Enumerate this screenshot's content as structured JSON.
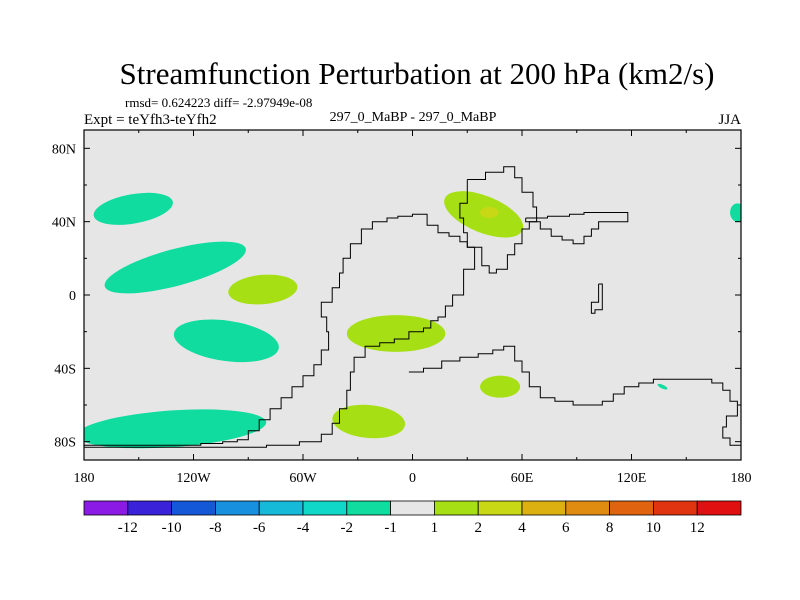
{
  "chart_data": {
    "type": "heatmap",
    "title": "Streamfunction Perturbation at 200 hPa (km2/s)",
    "stats_line": "rmsd= 0.624223 diff= -2.97949e-08",
    "experiment_label": "Expt = teYfh3-teYfh2",
    "period_label": "297_0_MaBP - 297_0_MaBP",
    "season_label": "JJA",
    "projection": "lat-lon",
    "xlim": [
      -180,
      180
    ],
    "ylim": [
      -90,
      90
    ],
    "background_color": "#e6e6e6",
    "coastline_color": "#000000",
    "x_ticks": [
      {
        "value": -180,
        "label": "180"
      },
      {
        "value": -120,
        "label": "120W"
      },
      {
        "value": -60,
        "label": "60W"
      },
      {
        "value": 0,
        "label": "0"
      },
      {
        "value": 60,
        "label": "60E"
      },
      {
        "value": 120,
        "label": "120E"
      },
      {
        "value": 180,
        "label": "180"
      }
    ],
    "y_ticks": [
      {
        "value": 80,
        "label": "80N"
      },
      {
        "value": 40,
        "label": "40N"
      },
      {
        "value": 0,
        "label": "0"
      },
      {
        "value": -40,
        "label": "40S"
      },
      {
        "value": -80,
        "label": "80S"
      }
    ],
    "colorbar": {
      "bins": [
        {
          "color": "#8c1ae6"
        },
        {
          "color": "#3a22d8"
        },
        {
          "color": "#1458d8"
        },
        {
          "color": "#1890e0"
        },
        {
          "color": "#14bad8"
        },
        {
          "color": "#10d8c8"
        },
        {
          "color": "#10dca0"
        },
        {
          "color": "#e6e6e6"
        },
        {
          "color": "#a6e014"
        },
        {
          "color": "#c8d814"
        },
        {
          "color": "#dcb010"
        },
        {
          "color": "#e08c10"
        },
        {
          "color": "#e06410"
        },
        {
          "color": "#e03410"
        },
        {
          "color": "#e01010"
        }
      ],
      "labels": [
        "-12",
        "-10",
        "-8",
        "-6",
        "-4",
        "-2",
        "-1",
        "1",
        "2",
        "4",
        "6",
        "8",
        "10",
        "12"
      ]
    },
    "anomaly_regions": [
      {
        "level": "-2 to -1",
        "color": "#10dca0",
        "lon": -153,
        "lat": 47,
        "rlon": 22,
        "rlat": 8,
        "rot": -10
      },
      {
        "level": "-2 to -1",
        "color": "#10dca0",
        "lon": -130,
        "lat": 15,
        "rlon": 40,
        "rlat": 10,
        "rot": -15
      },
      {
        "level": "-2 to -1",
        "color": "#10dca0",
        "lon": -102,
        "lat": -25,
        "rlon": 29,
        "rlat": 11,
        "rot": 8
      },
      {
        "level": "-2 to -1",
        "color": "#10dca0",
        "lon": -132,
        "lat": -73,
        "rlon": 52,
        "rlat": 10,
        "rot": -4
      },
      {
        "level": "-2 to -1",
        "color": "#10dca0",
        "lon": 178,
        "lat": 45,
        "rlon": 4,
        "rlat": 5,
        "rot": 0
      },
      {
        "level": "-2 to -1",
        "color": "#10dca0",
        "lon": 137,
        "lat": -50,
        "rlon": 3,
        "rlat": 1,
        "rot": 25
      },
      {
        "level": "1 to 2",
        "color": "#a6e014",
        "lon": -82,
        "lat": 3,
        "rlon": 19,
        "rlat": 8,
        "rot": -5
      },
      {
        "level": "1 to 2",
        "color": "#a6e014",
        "lon": -9,
        "lat": -21,
        "rlon": 27,
        "rlat": 10,
        "rot": 0
      },
      {
        "level": "1 to 2",
        "color": "#a6e014",
        "lon": -24,
        "lat": -69,
        "rlon": 20,
        "rlat": 9,
        "rot": 5
      },
      {
        "level": "1 to 2",
        "color": "#a6e014",
        "lon": 39,
        "lat": 44,
        "rlon": 23,
        "rlat": 10,
        "rot": 22
      },
      {
        "level": "1 to 2",
        "color": "#a6e014",
        "lon": 48,
        "lat": -50,
        "rlon": 11,
        "rlat": 6,
        "rot": 0
      },
      {
        "level": "2 to 4",
        "color": "#c8d814",
        "lon": 42,
        "lat": 45,
        "rlon": 5,
        "rlat": 3,
        "rot": 0
      }
    ],
    "coastlines": [
      [
        [
          -180,
          -82
        ],
        [
          -164,
          -82
        ],
        [
          -148,
          -82
        ],
        [
          -130,
          -82
        ],
        [
          -116,
          -81
        ],
        [
          -104,
          -80
        ],
        [
          -96,
          -79
        ],
        [
          -90,
          -74
        ],
        [
          -84,
          -68
        ],
        [
          -78,
          -62
        ],
        [
          -72,
          -56
        ],
        [
          -66,
          -50
        ],
        [
          -60,
          -44
        ],
        [
          -54,
          -38
        ],
        [
          -50,
          -30
        ],
        [
          -46,
          -20
        ],
        [
          -47,
          -12
        ],
        [
          -50,
          -4
        ],
        [
          -44,
          4
        ],
        [
          -40,
          12
        ],
        [
          -38,
          20
        ],
        [
          -34,
          28
        ],
        [
          -28,
          36
        ],
        [
          -22,
          40
        ],
        [
          -14,
          42
        ],
        [
          -8,
          43
        ],
        [
          0,
          44
        ],
        [
          8,
          38
        ],
        [
          14,
          34
        ],
        [
          20,
          32
        ],
        [
          26,
          29
        ],
        [
          30,
          26
        ],
        [
          34,
          14
        ],
        [
          28,
          0
        ],
        [
          22,
          -6
        ],
        [
          18,
          -12
        ],
        [
          14,
          -14
        ],
        [
          10,
          -18
        ],
        [
          6,
          -20
        ],
        [
          -2,
          -24
        ],
        [
          -10,
          -26
        ],
        [
          -18,
          -28
        ],
        [
          -26,
          -34
        ],
        [
          -32,
          -42
        ],
        [
          -34,
          -52
        ],
        [
          -36,
          -62
        ],
        [
          -40,
          -70
        ],
        [
          -44,
          -76
        ],
        [
          -50,
          -80
        ],
        [
          -62,
          -82
        ],
        [
          -80,
          -83
        ],
        [
          -100,
          -83
        ],
        [
          -120,
          -83
        ],
        [
          -140,
          -83
        ],
        [
          -160,
          -83
        ],
        [
          -180,
          -83
        ]
      ],
      [
        [
          -2,
          -42
        ],
        [
          6,
          -40
        ],
        [
          16,
          -36
        ],
        [
          26,
          -34
        ],
        [
          36,
          -32
        ],
        [
          44,
          -30
        ],
        [
          50,
          -28
        ],
        [
          56,
          -36
        ],
        [
          60,
          -42
        ],
        [
          64,
          -50
        ],
        [
          70,
          -56
        ],
        [
          78,
          -58
        ],
        [
          88,
          -60
        ],
        [
          96,
          -60
        ],
        [
          104,
          -58
        ],
        [
          110,
          -54
        ],
        [
          116,
          -50
        ],
        [
          124,
          -48
        ],
        [
          132,
          -46
        ],
        [
          140,
          -46
        ],
        [
          148,
          -46
        ],
        [
          156,
          -46
        ],
        [
          164,
          -48
        ],
        [
          170,
          -52
        ],
        [
          174,
          -58
        ],
        [
          178,
          -66
        ],
        [
          172,
          -72
        ],
        [
          170,
          -78
        ],
        [
          174,
          -82
        ],
        [
          180,
          -84
        ]
      ],
      [
        [
          30,
          63
        ],
        [
          40,
          67
        ],
        [
          50,
          70
        ],
        [
          56,
          64
        ],
        [
          60,
          56
        ],
        [
          66,
          48
        ],
        [
          68,
          40
        ],
        [
          64,
          36
        ],
        [
          60,
          28
        ],
        [
          56,
          22
        ],
        [
          52,
          14
        ],
        [
          46,
          12
        ],
        [
          42,
          16
        ],
        [
          38,
          26
        ],
        [
          30,
          34
        ],
        [
          28,
          42
        ],
        [
          26,
          50
        ],
        [
          30,
          63
        ]
      ],
      [
        [
          62,
          42
        ],
        [
          74,
          43
        ],
        [
          86,
          44
        ],
        [
          94,
          45
        ],
        [
          100,
          45
        ],
        [
          118,
          45
        ],
        [
          118,
          40
        ],
        [
          106,
          40
        ],
        [
          102,
          36
        ],
        [
          98,
          32
        ],
        [
          94,
          28
        ],
        [
          88,
          30
        ],
        [
          82,
          32
        ],
        [
          76,
          36
        ],
        [
          70,
          40
        ],
        [
          62,
          42
        ]
      ],
      [
        [
          102,
          6
        ],
        [
          104,
          0
        ],
        [
          104,
          -8
        ],
        [
          100,
          -10
        ],
        [
          98,
          -4
        ],
        [
          102,
          6
        ]
      ]
    ]
  }
}
